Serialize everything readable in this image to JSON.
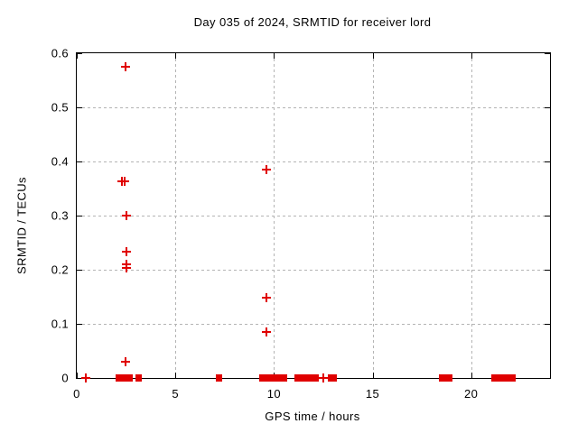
{
  "chart_data": {
    "type": "scatter",
    "title": "Day 035 of 2024, SRMTID for receiver lord",
    "xlabel": "GPS time / hours",
    "ylabel": "SRMTID / TECUs",
    "xlim": [
      0,
      24
    ],
    "ylim": [
      0,
      0.6
    ],
    "grid": true,
    "legend": "none",
    "marker": "plus",
    "xticks": [
      {
        "value": 0,
        "label": "0"
      },
      {
        "value": 5,
        "label": "5"
      },
      {
        "value": 10,
        "label": "10"
      },
      {
        "value": 15,
        "label": "15"
      },
      {
        "value": 20,
        "label": "20"
      }
    ],
    "yticks": [
      {
        "value": 0.0,
        "label": "0"
      },
      {
        "value": 0.1,
        "label": "0.1"
      },
      {
        "value": 0.2,
        "label": "0.2"
      },
      {
        "value": 0.3,
        "label": "0.3"
      },
      {
        "value": 0.4,
        "label": "0.4"
      },
      {
        "value": 0.5,
        "label": "0.5"
      },
      {
        "value": 0.6,
        "label": "0.6"
      }
    ],
    "points": [
      [
        2.49,
        0.575
      ],
      [
        2.27,
        0.363
      ],
      [
        2.45,
        0.363
      ],
      [
        2.5,
        0.3
      ],
      [
        2.52,
        0.233
      ],
      [
        2.5,
        0.21
      ],
      [
        2.5,
        0.203
      ],
      [
        2.48,
        0.03
      ],
      [
        9.63,
        0.385
      ],
      [
        9.63,
        0.148
      ],
      [
        9.6,
        0.085
      ],
      [
        0.46,
        0.0
      ],
      [
        12.49,
        0.0
      ]
    ],
    "zero_value_segments": [
      [
        2.03,
        2.77
      ],
      [
        3.03,
        3.2
      ],
      [
        7.08,
        7.27
      ],
      [
        9.3,
        10.6
      ],
      [
        11.07,
        11.75
      ],
      [
        11.9,
        12.2
      ],
      [
        12.78,
        13.1
      ],
      [
        18.4,
        18.97
      ],
      [
        21.05,
        22.16
      ]
    ],
    "colors": {
      "marker": "#e00000",
      "grid": "#b4b4b4",
      "axis": "#000000",
      "background": "#ffffff"
    }
  }
}
